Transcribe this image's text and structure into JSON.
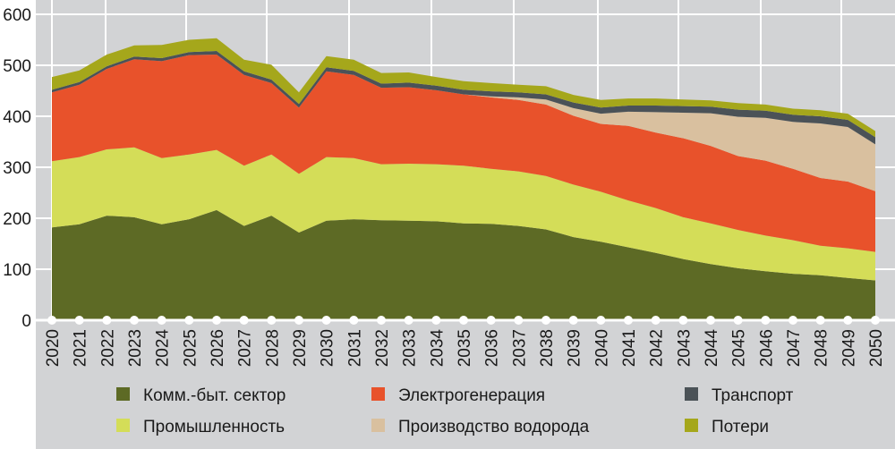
{
  "chart_data": {
    "type": "area",
    "stacked": true,
    "title": "",
    "xlabel": "",
    "ylabel": "",
    "ylim": [
      0,
      600
    ],
    "yticks": [
      0,
      100,
      200,
      300,
      400,
      500,
      600
    ],
    "grid": true,
    "legend_position": "bottom",
    "x": [
      "2020",
      "2021",
      "2022",
      "2023",
      "2024",
      "2025",
      "2026",
      "2027",
      "2028",
      "2029",
      "2030",
      "2031",
      "2032",
      "2033",
      "2034",
      "2035",
      "2036",
      "2037",
      "2038",
      "2039",
      "2040",
      "2041",
      "2042",
      "2043",
      "2044",
      "2045",
      "2046",
      "2047",
      "2048",
      "2049",
      "2050"
    ],
    "series": [
      {
        "name": "Комм.-быт. сектор",
        "color": "#5d6a25",
        "values": [
          182,
          188,
          205,
          202,
          188,
          198,
          216,
          185,
          205,
          172,
          195,
          198,
          196,
          195,
          194,
          190,
          189,
          185,
          178,
          163,
          154,
          143,
          132,
          120,
          110,
          102,
          96,
          91,
          88,
          83,
          78
        ]
      },
      {
        "name": "Промышленность",
        "color": "#d4dd58",
        "values": [
          130,
          132,
          130,
          137,
          130,
          127,
          118,
          118,
          120,
          115,
          125,
          120,
          110,
          112,
          112,
          113,
          108,
          107,
          105,
          103,
          98,
          92,
          88,
          82,
          80,
          75,
          70,
          66,
          58,
          58,
          56
        ]
      },
      {
        "name": "Электрогенерация",
        "color": "#e8522b",
        "values": [
          135,
          142,
          158,
          173,
          190,
          195,
          187,
          178,
          140,
          130,
          168,
          163,
          150,
          150,
          145,
          140,
          140,
          140,
          140,
          135,
          133,
          146,
          148,
          155,
          152,
          145,
          147,
          140,
          133,
          131,
          119
        ]
      },
      {
        "name": "Производство водорода",
        "color": "#d9c09f",
        "values": [
          0,
          0,
          0,
          0,
          0,
          0,
          0,
          0,
          0,
          0,
          0,
          0,
          0,
          0,
          0,
          0,
          2,
          5,
          10,
          15,
          20,
          28,
          40,
          50,
          64,
          77,
          84,
          92,
          107,
          107,
          92
        ]
      },
      {
        "name": "Транспорт",
        "color": "#4b5257",
        "values": [
          5,
          5,
          5,
          5,
          6,
          6,
          7,
          7,
          7,
          7,
          8,
          8,
          8,
          9,
          9,
          9,
          10,
          10,
          10,
          11,
          12,
          12,
          13,
          13,
          13,
          14,
          14,
          14,
          14,
          14,
          14
        ]
      },
      {
        "name": "Потери",
        "color": "#a5a71b",
        "values": [
          25,
          23,
          23,
          22,
          26,
          24,
          25,
          23,
          29,
          23,
          22,
          22,
          21,
          20,
          17,
          17,
          16,
          15,
          16,
          15,
          15,
          14,
          14,
          13,
          12,
          13,
          12,
          12,
          12,
          12,
          12
        ]
      }
    ]
  }
}
